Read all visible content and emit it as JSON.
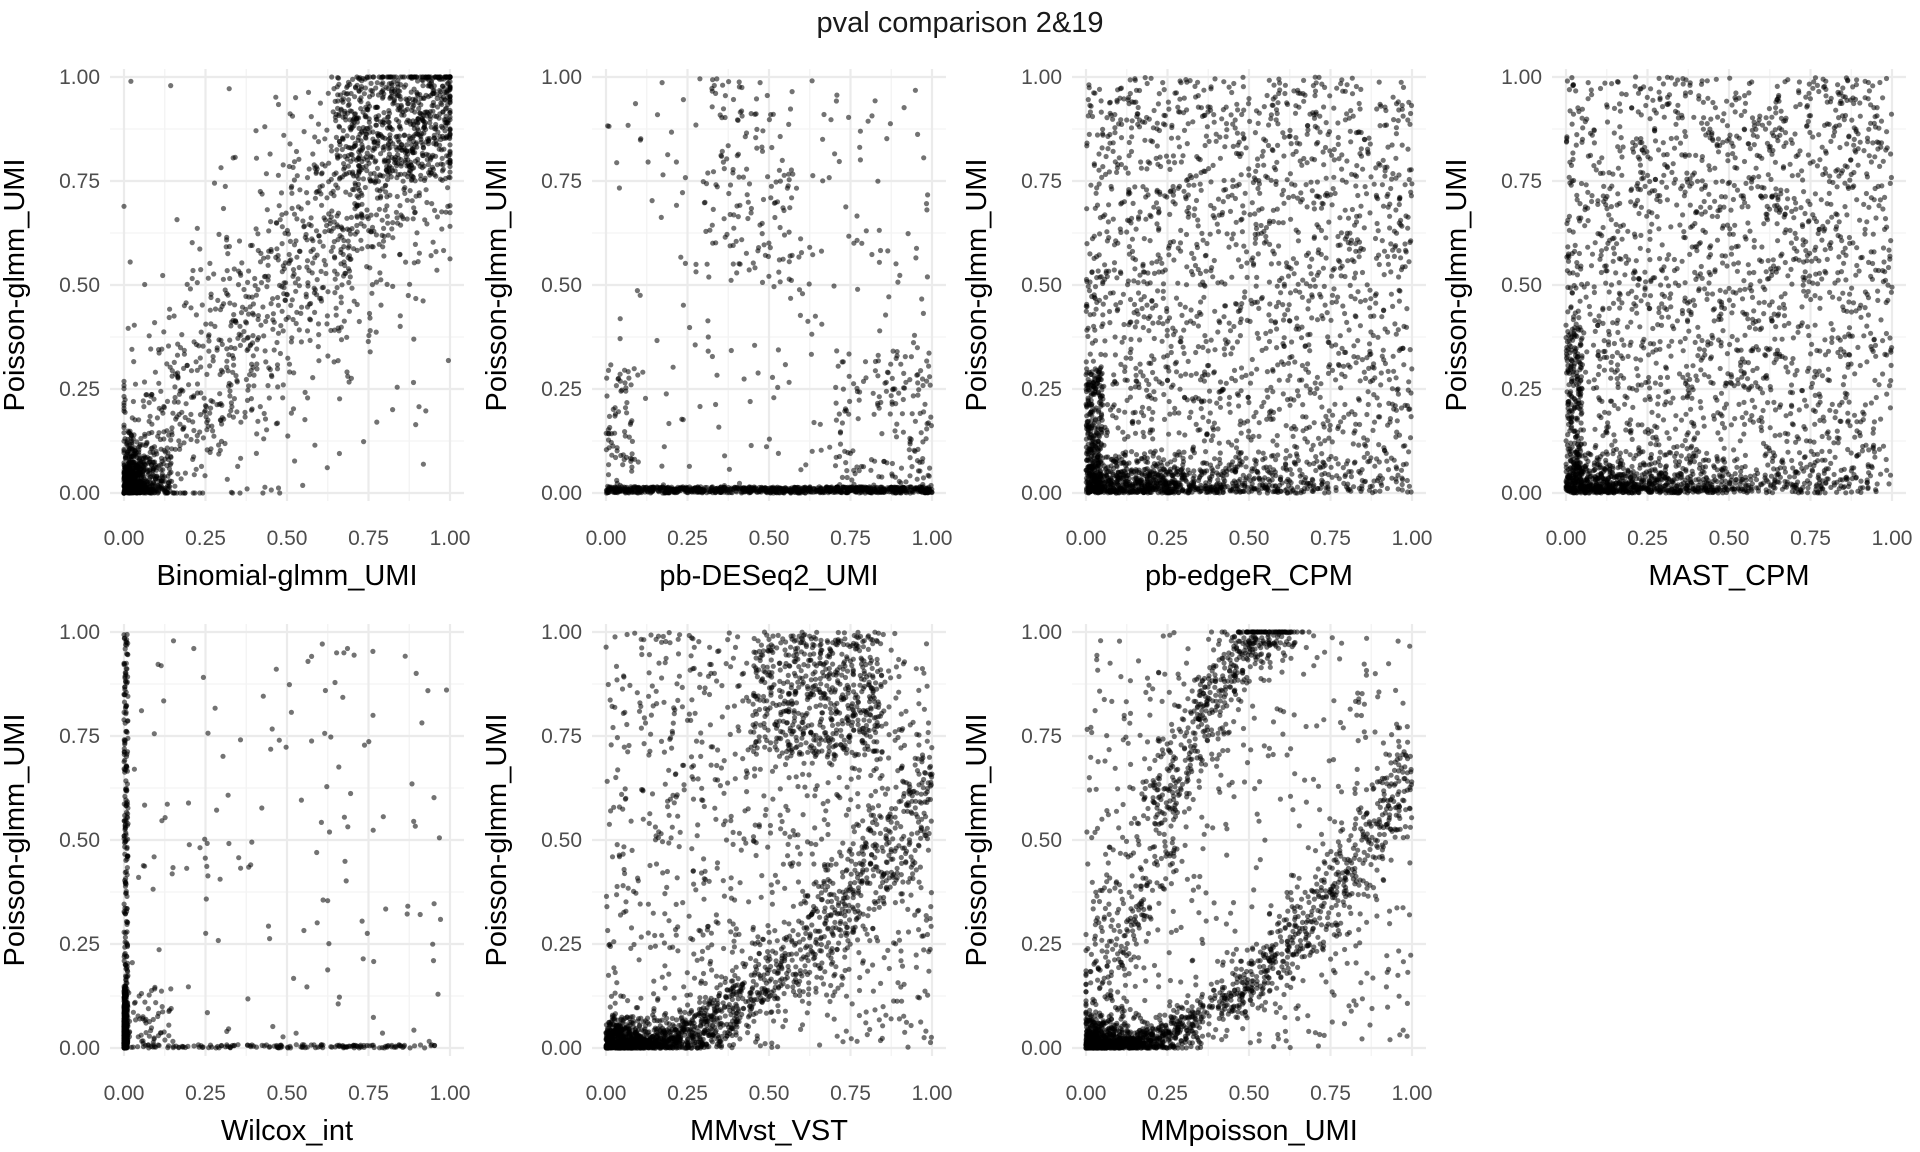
{
  "title": "pval comparison 2&19",
  "style": {
    "point_color": "#000000",
    "point_alpha": 0.55,
    "grid_major_color": "#ebebeb",
    "grid_minor_color": "#f3f3f3",
    "background": "#ffffff"
  },
  "chart_data": [
    {
      "type": "scatter",
      "xlabel": "Binomial-glmm_UMI",
      "ylabel": "Poisson-glmm_UMI",
      "xlim": [
        0,
        1
      ],
      "ylim": [
        0,
        1
      ],
      "xticks": [
        "0.00",
        "0.25",
        "0.50",
        "0.75",
        "1.00"
      ],
      "yticks": [
        "0.00",
        "0.25",
        "0.50",
        "0.75",
        "1.00"
      ],
      "pattern": "Strong positive correlation along the diagonal, dense cluster near the origin (0–0.15) and a band near (0.8–1.0, 0.8–1.0)",
      "clusters": [
        {
          "n": 650,
          "x": [
            0,
            0.15
          ],
          "y": [
            0,
            0.15
          ],
          "shape": "exp"
        },
        {
          "n": 1200,
          "x": [
            0,
            1
          ],
          "y": [
            0,
            1
          ],
          "shape": "diag",
          "spread": 0.12
        },
        {
          "n": 450,
          "x": [
            0.65,
            1
          ],
          "y": [
            0.75,
            1
          ],
          "shape": "box"
        },
        {
          "n": 90,
          "x": [
            0,
            1
          ],
          "y": [
            0,
            1
          ],
          "shape": "box"
        }
      ]
    },
    {
      "type": "scatter",
      "xlabel": "pb-DESeq2_UMI",
      "ylabel": "Poisson-glmm_UMI",
      "xlim": [
        0,
        1
      ],
      "ylim": [
        0,
        1
      ],
      "xticks": [
        "0.00",
        "0.25",
        "0.50",
        "0.75",
        "1.00"
      ],
      "yticks": [
        "0.00",
        "0.25",
        "0.50",
        "0.75",
        "1.00"
      ],
      "pattern": "Most points on y≈0 across all x; sparse scatter above, a vertical cluster near x≈0 and points near x≈0.9–1.0 at low y",
      "clusters": [
        {
          "n": 900,
          "x": [
            0,
            1
          ],
          "y": [
            0,
            0.015
          ],
          "shape": "box"
        },
        {
          "n": 120,
          "x": [
            0.3,
            0.6
          ],
          "y": [
            0.5,
            1
          ],
          "shape": "box"
        },
        {
          "n": 150,
          "x": [
            0.7,
            1
          ],
          "y": [
            0,
            0.35
          ],
          "shape": "box"
        },
        {
          "n": 220,
          "x": [
            0,
            1
          ],
          "y": [
            0,
            1
          ],
          "shape": "box"
        },
        {
          "n": 60,
          "x": [
            0,
            0.08
          ],
          "y": [
            0,
            0.3
          ],
          "shape": "box"
        }
      ]
    },
    {
      "type": "scatter",
      "xlabel": "pb-edgeR_CPM",
      "ylabel": "Poisson-glmm_UMI",
      "xlim": [
        0,
        1
      ],
      "ylim": [
        0,
        1
      ],
      "xticks": [
        "0.00",
        "0.25",
        "0.50",
        "0.75",
        "1.00"
      ],
      "yticks": [
        "0.00",
        "0.25",
        "0.50",
        "0.75",
        "1.00"
      ],
      "pattern": "Broad uniform scatter with dense band at low y (0–0.1) across x",
      "clusters": [
        {
          "n": 1800,
          "x": [
            0,
            1
          ],
          "y": [
            0,
            1
          ],
          "shape": "box"
        },
        {
          "n": 900,
          "x": [
            0,
            1
          ],
          "y": [
            0,
            0.1
          ],
          "shape": "exp"
        },
        {
          "n": 250,
          "x": [
            0,
            0.05
          ],
          "y": [
            0,
            0.3
          ],
          "shape": "box"
        }
      ]
    },
    {
      "type": "scatter",
      "xlabel": "MAST_CPM",
      "ylabel": "Poisson-glmm_UMI",
      "xlim": [
        0,
        1
      ],
      "ylim": [
        0,
        1
      ],
      "xticks": [
        "0.00",
        "0.25",
        "0.50",
        "0.75",
        "1.00"
      ],
      "yticks": [
        "0.00",
        "0.25",
        "0.50",
        "0.75",
        "1.00"
      ],
      "pattern": "Broad uniform scatter with dense band at low y (0–0.1) across x",
      "clusters": [
        {
          "n": 1900,
          "x": [
            0,
            1
          ],
          "y": [
            0,
            1
          ],
          "shape": "box"
        },
        {
          "n": 900,
          "x": [
            0,
            1
          ],
          "y": [
            0,
            0.1
          ],
          "shape": "exp"
        },
        {
          "n": 200,
          "x": [
            0,
            0.05
          ],
          "y": [
            0,
            0.4
          ],
          "shape": "box"
        }
      ]
    },
    {
      "type": "scatter",
      "xlabel": "Wilcox_int",
      "ylabel": "Poisson-glmm_UMI",
      "xlim": [
        0,
        1
      ],
      "ylim": [
        0,
        1
      ],
      "xticks": [
        "0.00",
        "0.25",
        "0.50",
        "0.75",
        "1.00"
      ],
      "yticks": [
        "0.00",
        "0.25",
        "0.50",
        "0.75",
        "1.00"
      ],
      "pattern": "Most points at x≈0 (vertical line) and y≈0 (horizontal line), sparse scatter elsewhere",
      "clusters": [
        {
          "n": 700,
          "x": [
            0,
            0.012
          ],
          "y": [
            0,
            0.15
          ],
          "shape": "exp"
        },
        {
          "n": 220,
          "x": [
            0,
            0.012
          ],
          "y": [
            0,
            1
          ],
          "shape": "box"
        },
        {
          "n": 160,
          "x": [
            0,
            1
          ],
          "y": [
            0,
            0.008
          ],
          "shape": "box"
        },
        {
          "n": 140,
          "x": [
            0,
            1
          ],
          "y": [
            0,
            1
          ],
          "shape": "box"
        },
        {
          "n": 60,
          "x": [
            0,
            0.15
          ],
          "y": [
            0,
            0.15
          ],
          "shape": "box"
        }
      ]
    },
    {
      "type": "scatter",
      "xlabel": "MMvst_VST",
      "ylabel": "Poisson-glmm_UMI",
      "xlim": [
        0,
        1
      ],
      "ylim": [
        0,
        1
      ],
      "xticks": [
        "0.00",
        "0.25",
        "0.50",
        "0.75",
        "1.00"
      ],
      "yticks": [
        "0.00",
        "0.25",
        "0.50",
        "0.75",
        "1.00"
      ],
      "pattern": "Dense cluster near origin, curved band from (0,0) rising to (1,0.6), plus broad scatter and cluster near (0.6,0.9)",
      "clusters": [
        {
          "n": 700,
          "x": [
            0,
            0.4
          ],
          "y": [
            0,
            0.08
          ],
          "shape": "exp"
        },
        {
          "n": 900,
          "x": [
            0,
            1
          ],
          "y": [
            0,
            0.7
          ],
          "shape": "curve",
          "spread": 0.1
        },
        {
          "n": 500,
          "x": [
            0.45,
            0.85
          ],
          "y": [
            0.7,
            1
          ],
          "shape": "box"
        },
        {
          "n": 1000,
          "x": [
            0,
            1
          ],
          "y": [
            0,
            1
          ],
          "shape": "box"
        }
      ]
    },
    {
      "type": "scatter",
      "xlabel": "MMpoisson_UMI",
      "ylabel": "Poisson-glmm_UMI",
      "xlim": [
        0,
        1
      ],
      "ylim": [
        0,
        1
      ],
      "xticks": [
        "0.00",
        "0.25",
        "0.50",
        "0.75",
        "1.00"
      ],
      "yticks": [
        "0.00",
        "0.25",
        "0.50",
        "0.75",
        "1.00"
      ],
      "pattern": "Two bands: one along a rising arc to (0.6,1.0), one curved band from origin to (1,0.6); dense near origin",
      "clusters": [
        {
          "n": 600,
          "x": [
            0,
            0.35
          ],
          "y": [
            0,
            0.08
          ],
          "shape": "exp"
        },
        {
          "n": 900,
          "x": [
            0,
            1
          ],
          "y": [
            0,
            0.7
          ],
          "shape": "curve",
          "spread": 0.08
        },
        {
          "n": 700,
          "x": [
            0,
            0.65
          ],
          "y": [
            0,
            1
          ],
          "shape": "arc",
          "spread": 0.08
        },
        {
          "n": 500,
          "x": [
            0,
            1
          ],
          "y": [
            0,
            1
          ],
          "shape": "box"
        }
      ]
    }
  ]
}
